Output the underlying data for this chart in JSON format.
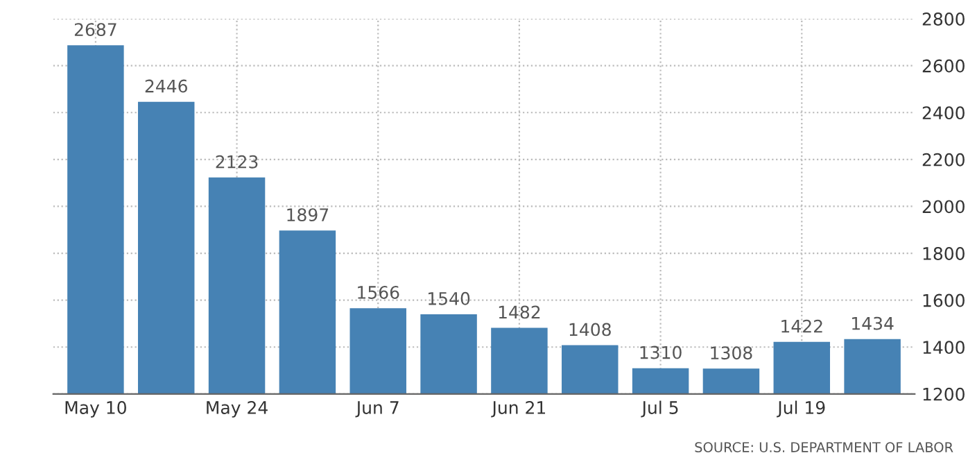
{
  "chart_data": {
    "type": "bar",
    "categories": [
      "May 10",
      null,
      "May 24",
      null,
      "Jun 7",
      null,
      "Jun 21",
      null,
      "Jul 5",
      null,
      "Jul 19",
      null
    ],
    "values": [
      2687,
      2446,
      2123,
      1897,
      1566,
      1540,
      1482,
      1408,
      1310,
      1308,
      1422,
      1434
    ],
    "color": "#4682b4",
    "ylim": [
      1200,
      2800
    ],
    "yticks": [
      1200,
      1400,
      1600,
      1800,
      2000,
      2200,
      2400,
      2600,
      2800
    ],
    "grid": true,
    "data_labels": true,
    "annotations": [
      "SOURCE: U.S. DEPARTMENT OF LABOR"
    ]
  }
}
